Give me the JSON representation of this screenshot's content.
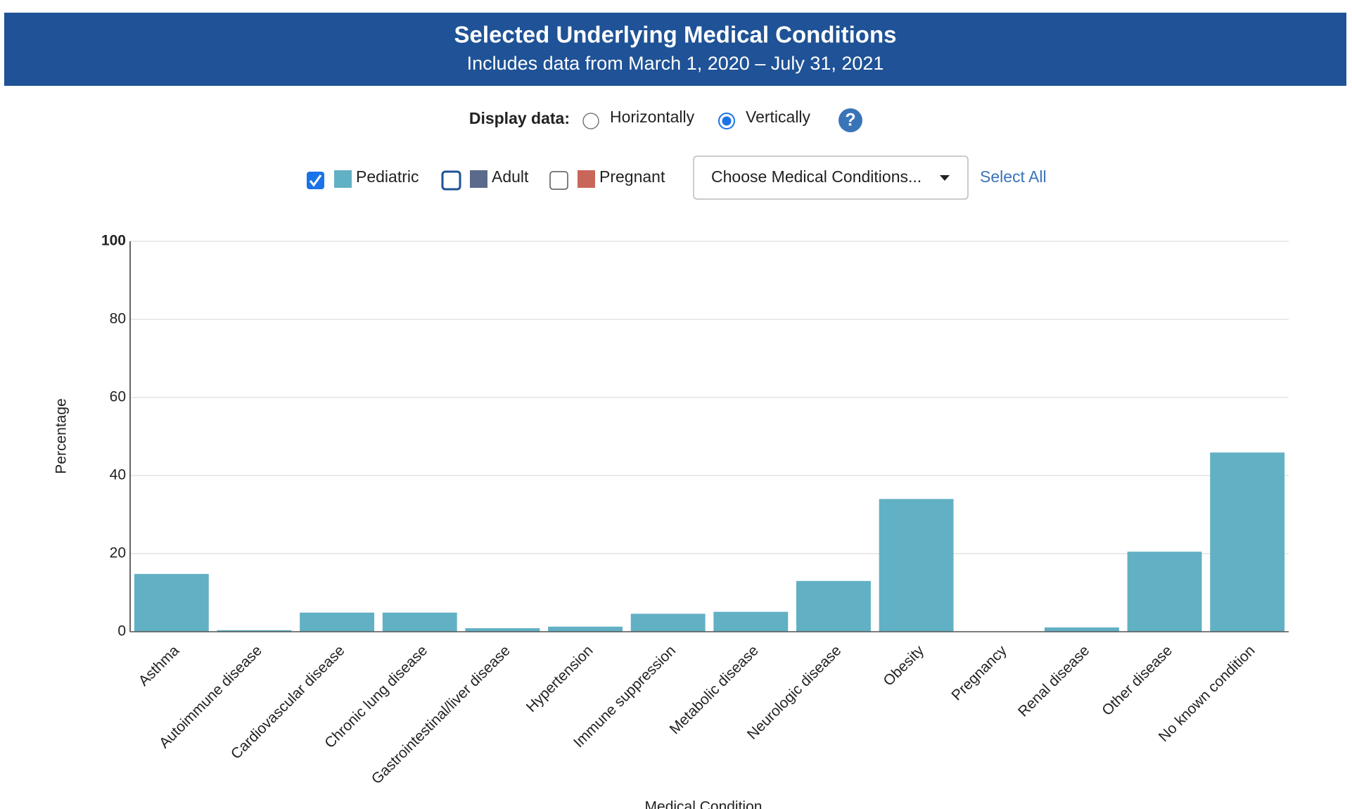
{
  "chart_data": {
    "type": "bar",
    "title": "Selected Underlying Medical Conditions",
    "subtitle": "Includes data from March 1, 2020 – July 31, 2021",
    "x_label": "Medical Condition",
    "y_label": "Percentage",
    "categories": [
      "Asthma",
      "Autoimmune disease",
      "Cardiovascular disease",
      "Chronic lung disease",
      "Gastrointestinal/liver disease",
      "Hypertension",
      "Immune suppression",
      "Metabolic disease",
      "Neurologic disease",
      "Obesity",
      "Pregnancy",
      "Renal disease",
      "Other disease",
      "No known condition"
    ],
    "values": [
      14.8,
      0.4,
      4.9,
      4.9,
      0.9,
      1.3,
      4.6,
      5.1,
      13.0,
      34.0,
      0,
      1.1,
      20.5,
      45.9
    ],
    "color": "#62b0c4",
    "ylim": [
      0,
      100
    ],
    "yticks": [
      0,
      20,
      40,
      60,
      80,
      100
    ],
    "grid": true
  },
  "controls": {
    "display_label": "Display data:",
    "options": [
      "Horizontally",
      "Vertically"
    ],
    "selected": "Vertically",
    "help_icon": "?",
    "dropdown": "Choose Medical Conditions...",
    "select_all": "Select All"
  },
  "filters": [
    {
      "name": "Pediatric",
      "color": "#62b0c4",
      "checked": true,
      "focused": false
    },
    {
      "name": "Adult",
      "color": "#5a6a8a",
      "checked": false,
      "focused": true
    },
    {
      "name": "Pregnant",
      "color": "#c9665a",
      "checked": false,
      "focused": false
    }
  ]
}
